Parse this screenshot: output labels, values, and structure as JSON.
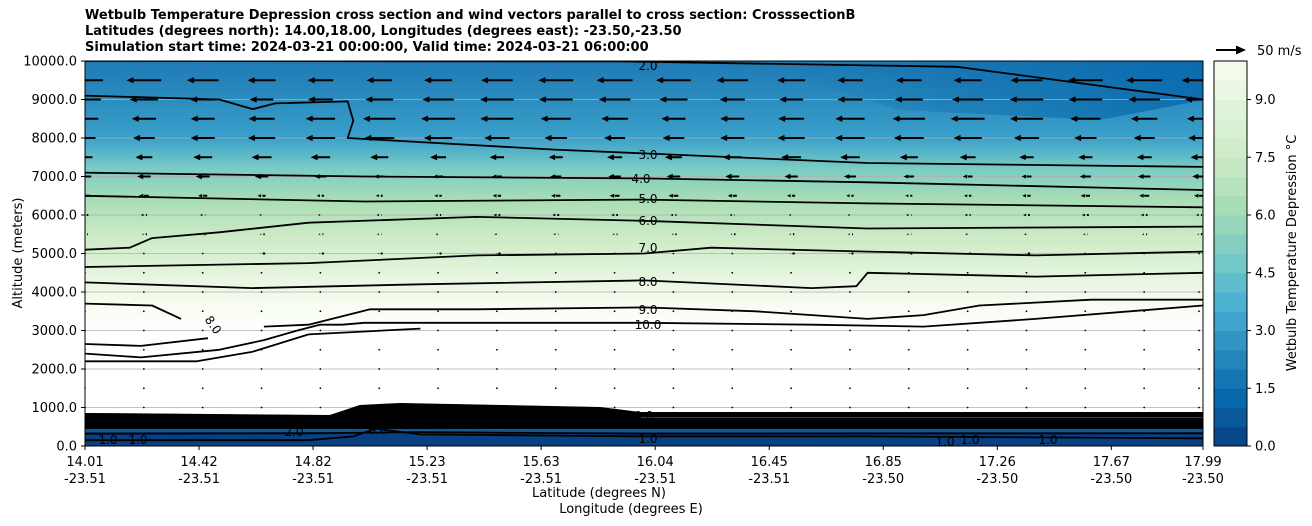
{
  "chart_data": {
    "type": "contour",
    "title_lines": [
      "Wetbulb Temperature Depression cross section and wind vectors parallel to cross section: CrosssectionB",
      "Latitudes (degrees north): 14.00,18.00, Longitudes (degrees east): -23.50,-23.50",
      "Simulation start time: 2024-03-21 00:00:00, Valid time: 2024-03-21 06:00:00"
    ],
    "xlabel": "Latitude (degrees N)",
    "xlabel2": "Longitude (degrees E)",
    "ylabel": "Altitude (meters)",
    "ylim": [
      0,
      10000
    ],
    "yticks": [
      "0.0",
      "1000.0",
      "2000.0",
      "3000.0",
      "4000.0",
      "5000.0",
      "6000.0",
      "7000.0",
      "8000.0",
      "9000.0",
      "10000.0"
    ],
    "xticks": [
      {
        "lat": "14.01",
        "lon": "-23.51"
      },
      {
        "lat": "14.42",
        "lon": "-23.51"
      },
      {
        "lat": "14.82",
        "lon": "-23.51"
      },
      {
        "lat": "15.23",
        "lon": "-23.51"
      },
      {
        "lat": "15.63",
        "lon": "-23.51"
      },
      {
        "lat": "16.04",
        "lon": "-23.51"
      },
      {
        "lat": "16.45",
        "lon": "-23.51"
      },
      {
        "lat": "16.85",
        "lon": "-23.50"
      },
      {
        "lat": "17.26",
        "lon": "-23.50"
      },
      {
        "lat": "17.67",
        "lon": "-23.50"
      },
      {
        "lat": "17.99",
        "lon": "-23.50"
      }
    ],
    "colorbar": {
      "label": "Wetbulb Temperature Depression °C",
      "range": [
        0,
        10
      ],
      "ticks": [
        "0.0",
        "1.5",
        "3.0",
        "4.5",
        "6.0",
        "7.5",
        "9.0"
      ],
      "colors": [
        "#084081",
        "#0868ac",
        "#2b8cbe",
        "#4eb3d3",
        "#7bccc4",
        "#a8ddb5",
        "#ccebc5",
        "#e0f3db",
        "#f7fcf0"
      ]
    },
    "contour_labels": [
      "2.0",
      "3.0",
      "4.0",
      "5.0",
      "6.0",
      "7.0",
      "8.0",
      "9.0",
      "10.0",
      "8.0",
      "10.0",
      "1.0",
      "1.0",
      "1.0",
      "2.0",
      "0.0",
      "1.0",
      "1.0",
      "1.0"
    ],
    "isolines": [
      {
        "level": 2.0,
        "points": [
          [
            0,
            10000
          ],
          [
            4800,
            9990
          ],
          [
            7800,
            9850
          ],
          [
            10000,
            9000
          ]
        ]
      },
      {
        "level": 3.0,
        "points": [
          [
            0,
            9100
          ],
          [
            1200,
            9000
          ],
          [
            1500,
            8750
          ],
          [
            1700,
            8900
          ],
          [
            2350,
            8950
          ],
          [
            2400,
            8450
          ],
          [
            2350,
            8000
          ],
          [
            4200,
            7700
          ],
          [
            5000,
            7600
          ],
          [
            7000,
            7350
          ],
          [
            10000,
            7250
          ]
        ]
      },
      {
        "level": 4.0,
        "points": [
          [
            0,
            7100
          ],
          [
            2500,
            7000
          ],
          [
            5000,
            6950
          ],
          [
            7000,
            6850
          ],
          [
            10000,
            6650
          ]
        ]
      },
      {
        "level": 5.0,
        "points": [
          [
            0,
            6500
          ],
          [
            2500,
            6350
          ],
          [
            5000,
            6400
          ],
          [
            7000,
            6300
          ],
          [
            10000,
            6200
          ]
        ]
      },
      {
        "level": 6.0,
        "points": [
          [
            0,
            5100
          ],
          [
            400,
            5150
          ],
          [
            600,
            5400
          ],
          [
            1200,
            5550
          ],
          [
            2000,
            5800
          ],
          [
            3500,
            5950
          ],
          [
            5000,
            5850
          ],
          [
            7000,
            5650
          ],
          [
            10000,
            5700
          ]
        ]
      },
      {
        "level": 7.0,
        "points": [
          [
            0,
            4650
          ],
          [
            2000,
            4750
          ],
          [
            3500,
            4950
          ],
          [
            5000,
            5000
          ],
          [
            5600,
            5150
          ],
          [
            7000,
            5050
          ],
          [
            8500,
            4950
          ],
          [
            10000,
            5050
          ]
        ]
      },
      {
        "level": 8.0,
        "points": [
          [
            0,
            4250
          ],
          [
            1500,
            4100
          ],
          [
            3000,
            4200
          ],
          [
            5000,
            4300
          ],
          [
            6500,
            4100
          ],
          [
            6900,
            4150
          ],
          [
            7000,
            4500
          ],
          [
            8500,
            4400
          ],
          [
            10000,
            4500
          ]
        ]
      },
      {
        "level": 9.0,
        "points": [
          [
            0,
            3700
          ],
          [
            600,
            3650
          ],
          [
            860,
            3300
          ]
        ]
      },
      {
        "level": 8.0,
        "points": [
          [
            0,
            2650
          ],
          [
            500,
            2600
          ],
          [
            1100,
            2800
          ]
        ]
      },
      {
        "level": 9.0,
        "points": [
          [
            1600,
            3100
          ],
          [
            2000,
            3150
          ],
          [
            2550,
            3550
          ],
          [
            3500,
            3550
          ],
          [
            5000,
            3600
          ],
          [
            6000,
            3500
          ],
          [
            7000,
            3300
          ],
          [
            7500,
            3400
          ],
          [
            8000,
            3650
          ],
          [
            9000,
            3800
          ],
          [
            10000,
            3800
          ]
        ]
      },
      {
        "level": 10.0,
        "points": [
          [
            0,
            2400
          ],
          [
            500,
            2300
          ],
          [
            1200,
            2500
          ],
          [
            1600,
            2750
          ],
          [
            1900,
            3000
          ],
          [
            2100,
            3150
          ],
          [
            2300,
            3150
          ],
          [
            2500,
            3200
          ],
          [
            5000,
            3200
          ],
          [
            6500,
            3150
          ],
          [
            7500,
            3100
          ],
          [
            8500,
            3300
          ],
          [
            10000,
            3650
          ]
        ]
      },
      {
        "level": 10.0,
        "points": [
          [
            0,
            2200
          ],
          [
            1000,
            2200
          ],
          [
            1500,
            2450
          ],
          [
            2000,
            2900
          ],
          [
            3000,
            3050
          ]
        ]
      },
      {
        "level": 1.0,
        "points": [
          [
            0,
            150
          ],
          [
            2000,
            150
          ],
          [
            2400,
            250
          ],
          [
            2600,
            450
          ],
          [
            3000,
            300
          ],
          [
            5000,
            250
          ],
          [
            7000,
            250
          ],
          [
            10000,
            200
          ]
        ]
      },
      {
        "level": 2.0,
        "points": [
          [
            0,
            320
          ],
          [
            2000,
            330
          ],
          [
            3000,
            360
          ],
          [
            5000,
            320
          ],
          [
            10000,
            330
          ]
        ]
      }
    ],
    "vector_legend": "50 m/s"
  }
}
